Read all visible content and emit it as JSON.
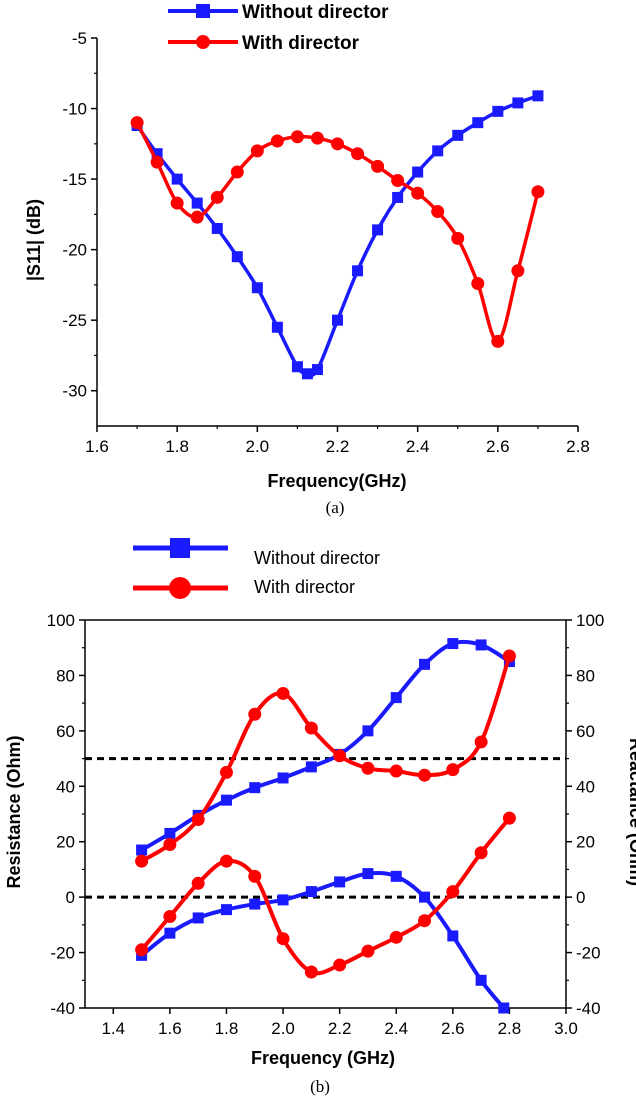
{
  "chart_data": [
    {
      "type": "line",
      "caption": "(a)",
      "xlabel": "Frequency(GHz)",
      "ylabel": "|S11| (dB)",
      "xlim": [
        1.6,
        2.8
      ],
      "ylim": [
        -32.5,
        -5
      ],
      "xticks": [
        1.6,
        1.8,
        2.0,
        2.2,
        2.4,
        2.6,
        2.8
      ],
      "xtick_labels": [
        "1.6",
        "1.8",
        "2.0",
        "2.2",
        "2.4",
        "2.6",
        "2.8"
      ],
      "yticks": [
        -5,
        -10,
        -15,
        -20,
        -25,
        -30
      ],
      "ytick_labels": [
        "-5",
        "-10",
        "-15",
        "-20",
        "-25",
        "-30"
      ],
      "legend": [
        "Without director",
        "With director"
      ],
      "series": [
        {
          "name": "Without director",
          "color": "#1a1aff",
          "marker": "square",
          "x": [
            1.7,
            1.75,
            1.8,
            1.85,
            1.9,
            1.95,
            2.0,
            2.05,
            2.1,
            2.125,
            2.15,
            2.2,
            2.25,
            2.3,
            2.35,
            2.4,
            2.45,
            2.5,
            2.55,
            2.6,
            2.65,
            2.7
          ],
          "values": [
            -11.2,
            -13.2,
            -15.0,
            -16.7,
            -18.5,
            -20.5,
            -22.7,
            -25.5,
            -28.3,
            -28.8,
            -28.5,
            -25.0,
            -21.5,
            -18.6,
            -16.3,
            -14.5,
            -13.0,
            -11.9,
            -11.0,
            -10.2,
            -9.6,
            -9.1
          ]
        },
        {
          "name": "With director",
          "color": "#ff0000",
          "marker": "circle",
          "x": [
            1.7,
            1.75,
            1.8,
            1.85,
            1.9,
            1.95,
            2.0,
            2.05,
            2.1,
            2.15,
            2.2,
            2.25,
            2.3,
            2.35,
            2.4,
            2.45,
            2.5,
            2.55,
            2.6,
            2.65,
            2.7
          ],
          "values": [
            -11.0,
            -13.8,
            -16.7,
            -17.7,
            -16.3,
            -14.5,
            -13.0,
            -12.3,
            -12.0,
            -12.1,
            -12.5,
            -13.2,
            -14.1,
            -15.1,
            -16.0,
            -17.3,
            -19.2,
            -22.4,
            -26.5,
            -21.5,
            -15.9
          ]
        }
      ]
    },
    {
      "type": "line",
      "caption": "(b)",
      "xlabel": "Frequency (GHz)",
      "ylabel": "Resistance (Ohm)",
      "ylabel_right": "Reactance (Ohm)",
      "xlim": [
        1.3,
        3.0
      ],
      "ylim": [
        -40,
        100
      ],
      "xticks": [
        1.4,
        1.6,
        1.8,
        2.0,
        2.2,
        2.4,
        2.6,
        2.8,
        3.0
      ],
      "xtick_labels": [
        "1.4",
        "1.6",
        "1.8",
        "2.0",
        "2.2",
        "2.4",
        "2.6",
        "2.8",
        "3.0"
      ],
      "yticks": [
        100,
        80,
        60,
        40,
        20,
        0,
        -20,
        -40
      ],
      "ytick_labels": [
        "100",
        "80",
        "60",
        "40",
        "20",
        "0",
        "-20",
        "-40"
      ],
      "ytick_labels_right": [
        "100",
        "80",
        "60",
        "40",
        "20",
        "0",
        "-20",
        "-40"
      ],
      "reference_lines": [
        50,
        0
      ],
      "legend": [
        "Without director",
        "With director"
      ],
      "series": [
        {
          "name": "Without director (resistance)",
          "color": "#1a1aff",
          "marker": "square",
          "x": [
            1.5,
            1.6,
            1.7,
            1.8,
            1.9,
            2.0,
            2.1,
            2.2,
            2.3,
            2.4,
            2.5,
            2.6,
            2.7,
            2.8
          ],
          "values": [
            17,
            23,
            29.5,
            35,
            39.5,
            43,
            47,
            51.5,
            60,
            72,
            84,
            91.5,
            91,
            85
          ]
        },
        {
          "name": "Without director (reactance)",
          "color": "#1a1aff",
          "marker": "square",
          "x": [
            1.5,
            1.6,
            1.7,
            1.8,
            1.9,
            2.0,
            2.1,
            2.2,
            2.3,
            2.4,
            2.5,
            2.6,
            2.7,
            2.78
          ],
          "values": [
            -21,
            -13,
            -7.5,
            -4.5,
            -2.5,
            -1,
            2,
            5.5,
            8.5,
            7.5,
            0,
            -14,
            -30,
            -40
          ]
        },
        {
          "name": "With director (resistance)",
          "color": "#ff0000",
          "marker": "circle",
          "x": [
            1.5,
            1.6,
            1.7,
            1.8,
            1.9,
            2.0,
            2.1,
            2.2,
            2.3,
            2.4,
            2.5,
            2.6,
            2.7,
            2.8
          ],
          "values": [
            13,
            19,
            28,
            45,
            66,
            73.5,
            61,
            51,
            46.5,
            45.5,
            44,
            46,
            56,
            87
          ]
        },
        {
          "name": "With director (reactance)",
          "color": "#ff0000",
          "marker": "circle",
          "x": [
            1.5,
            1.6,
            1.7,
            1.8,
            1.9,
            2.0,
            2.1,
            2.2,
            2.3,
            2.4,
            2.5,
            2.6,
            2.7,
            2.8
          ],
          "values": [
            -19,
            -7,
            5,
            13,
            7.5,
            -15,
            -27,
            -24.5,
            -19.5,
            -14.5,
            -8.5,
            2,
            16,
            28.5
          ]
        }
      ]
    }
  ]
}
